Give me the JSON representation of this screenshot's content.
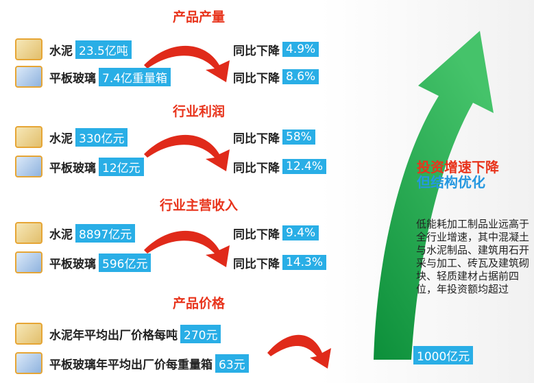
{
  "sections": [
    {
      "title": "产品产量",
      "rows": [
        {
          "label": "水泥",
          "value": "23.5亿吨",
          "change_label": "同比下降",
          "change": "4.9%"
        },
        {
          "label": "平板玻璃",
          "value": "7.4亿重量箱",
          "change_label": "同比下降",
          "change": "8.6%"
        }
      ]
    },
    {
      "title": "行业利润",
      "rows": [
        {
          "label": "水泥",
          "value": "330亿元",
          "change_label": "同比下降",
          "change": "58%"
        },
        {
          "label": "平板玻璃",
          "value": "12亿元",
          "change_label": "同比下降",
          "change": "12.4%"
        }
      ]
    },
    {
      "title": "行业主营收入",
      "rows": [
        {
          "label": "水泥",
          "value": "8897亿元",
          "change_label": "同比下降",
          "change": "9.4%"
        },
        {
          "label": "平板玻璃",
          "value": "596亿元",
          "change_label": "同比下降",
          "change": "14.3%"
        }
      ]
    },
    {
      "title": "产品价格",
      "rows": [
        {
          "label": "水泥年平均出厂价格每吨",
          "value": "270元"
        },
        {
          "label": "平板玻璃年平均出厂价每重量箱",
          "value": "63元"
        }
      ]
    }
  ],
  "panel": {
    "headline": [
      "投资增速下降",
      "但结构优化"
    ],
    "body": "低能耗加工制品业远高于全行业增速，其中混凝土与水泥制品、建筑用石开采与加工、砖瓦及建筑砌块、轻质建材占据前四位，年投资额均超过",
    "highlight": "1000亿元"
  }
}
